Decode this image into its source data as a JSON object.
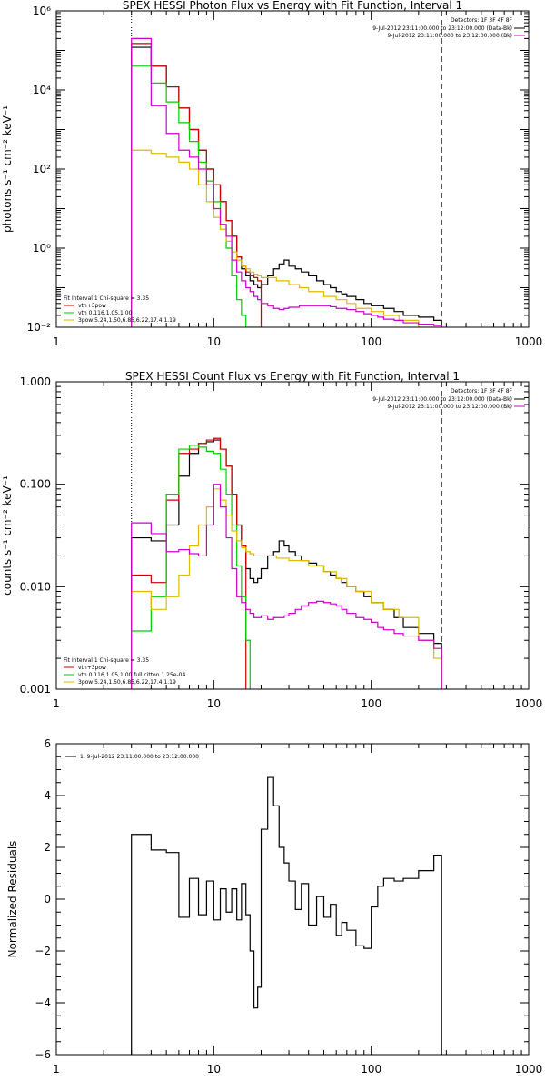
{
  "chart_data": [
    {
      "type": "line",
      "title": "SPEX HESSI Photon Flux vs Energy with Fit Function, Interval 1",
      "ylabel": "photons s⁻¹ cm⁻² keV⁻¹",
      "xscale": "log",
      "yscale": "log",
      "xlim": [
        1,
        1000
      ],
      "ylim": [
        0.01,
        1000000
      ],
      "x_ticks": [
        {
          "value": 1,
          "label": "1"
        },
        {
          "value": 10,
          "label": "10"
        },
        {
          "value": 100,
          "label": "100"
        },
        {
          "value": 1000,
          "label": "1000"
        }
      ],
      "y_ticks": [
        {
          "value": 0.01,
          "label": "10⁻²"
        },
        {
          "value": 1,
          "label": "10⁰"
        },
        {
          "value": 100,
          "label": "10²"
        },
        {
          "value": 10000,
          "label": "10⁴"
        },
        {
          "value": 1000000,
          "label": "10⁶"
        }
      ],
      "vlines": [
        {
          "x": 3,
          "style": "dotted",
          "color": "#000000"
        },
        {
          "x": 280,
          "style": "dashed",
          "color": "#000000"
        }
      ],
      "legend_topright": {
        "detectors": "Detectors: 1F 3F 4F 8F",
        "entries": [
          {
            "text": "9-Jul-2012 23:11:00.000 to 23:12:00.000 (Data-Bk)",
            "color": "#000000"
          },
          {
            "text": "9-Jul-2012 23:11:00.000 to 23:12:00.000 (Bk)",
            "color": "#cc00cc"
          }
        ]
      },
      "legend_bottomleft": {
        "fit_label": "Fit Interval 1    Chi-square = 3.35",
        "entries": [
          {
            "text": "vth+3pow",
            "color": "#cc0000"
          },
          {
            "text": "vth 0.116,1.05,1.00",
            "color": "#00cc00"
          },
          {
            "text": "3pow 5.24,1.50,6.85,6.22,17.4,1.19",
            "color": "#ddbb00"
          }
        ]
      },
      "series": [
        {
          "name": "Data-Bk",
          "color": "#000000",
          "edges": [
            3,
            4,
            5,
            6,
            7,
            8,
            9,
            10,
            11,
            12,
            13,
            14,
            15,
            16,
            17,
            18,
            19,
            20,
            22,
            24,
            26,
            28,
            30,
            33,
            36,
            40,
            45,
            50,
            55,
            60,
            65,
            70,
            80,
            90,
            100,
            120,
            140,
            160,
            200,
            250,
            280
          ],
          "values": [
            120000,
            40000,
            12000,
            3500,
            1000,
            300,
            100,
            40,
            15,
            5,
            2,
            0.6,
            0.3,
            0.2,
            0.15,
            0.12,
            0.1,
            0.12,
            0.2,
            0.3,
            0.4,
            0.5,
            0.35,
            0.3,
            0.25,
            0.2,
            0.15,
            0.12,
            0.1,
            0.08,
            0.07,
            0.06,
            0.05,
            0.04,
            0.035,
            0.03,
            0.025,
            0.02,
            0.018,
            0.015
          ]
        },
        {
          "name": "vth+3pow",
          "color": "#cc0000",
          "edges": [
            3,
            4,
            5,
            6,
            7,
            8,
            9,
            10,
            11,
            12,
            13,
            14,
            15,
            16,
            17,
            18,
            19,
            20
          ],
          "values": [
            150000,
            40000,
            12000,
            3500,
            1000,
            300,
            100,
            40,
            15,
            5,
            2,
            0.6,
            0.35,
            0.25,
            0.2,
            0.18,
            0.15
          ]
        },
        {
          "name": "vth 0.116,1.05,1.00",
          "color": "#00cc00",
          "edges": [
            3,
            4,
            5,
            6,
            7,
            8,
            9,
            10,
            11,
            12,
            13,
            14,
            15,
            16,
            17,
            18,
            19,
            20
          ],
          "values": [
            40000,
            15000,
            5000,
            1500,
            500,
            150,
            50,
            15,
            4,
            1,
            0.2,
            0.05,
            0.02,
            0.01,
            0.01,
            0.01,
            0.01
          ]
        },
        {
          "name": "3pow 5.24,1.50,6.85,6.22,17.4,1.19",
          "color": "#ddbb00",
          "edges": [
            3,
            4,
            5,
            6,
            7,
            8,
            9,
            10,
            11,
            12,
            13,
            14,
            15,
            16,
            17,
            18,
            19,
            20,
            25,
            30,
            35,
            40,
            50,
            60,
            70,
            80,
            100,
            120,
            150,
            200,
            280
          ],
          "values": [
            300,
            250,
            200,
            150,
            100,
            40,
            15,
            6,
            3,
            1.5,
            0.8,
            0.5,
            0.35,
            0.3,
            0.25,
            0.22,
            0.2,
            0.18,
            0.15,
            0.12,
            0.1,
            0.08,
            0.06,
            0.05,
            0.04,
            0.03,
            0.025,
            0.02,
            0.015,
            0.01
          ]
        },
        {
          "name": "Bk",
          "color": "#cc00cc",
          "edges": [
            3,
            4,
            5,
            6,
            7,
            8,
            9,
            10,
            11,
            12,
            13,
            14,
            15,
            16,
            17,
            18,
            19,
            20,
            22,
            24,
            26,
            28,
            30,
            35,
            40,
            45,
            50,
            55,
            60,
            70,
            80,
            90,
            100,
            110,
            120,
            140,
            160,
            200,
            250,
            280
          ],
          "values": [
            200000,
            4000,
            800,
            300,
            200,
            100,
            40,
            10,
            4,
            2,
            0.5,
            0.25,
            0.15,
            0.1,
            0.08,
            0.06,
            0.05,
            0.04,
            0.035,
            0.03,
            0.028,
            0.03,
            0.032,
            0.035,
            0.035,
            0.035,
            0.035,
            0.033,
            0.03,
            0.028,
            0.025,
            0.022,
            0.02,
            0.018,
            0.016,
            0.015,
            0.013,
            0.012,
            0.011
          ]
        }
      ]
    },
    {
      "type": "line",
      "title": "SPEX HESSI Count Flux vs Energy with Fit Function, Interval 1",
      "ylabel": "counts s⁻¹ cm⁻² keV⁻¹",
      "xscale": "log",
      "yscale": "log",
      "xlim": [
        1,
        1000
      ],
      "ylim": [
        0.001,
        1
      ],
      "x_ticks": [
        {
          "value": 1,
          "label": "1"
        },
        {
          "value": 10,
          "label": "10"
        },
        {
          "value": 100,
          "label": "100"
        },
        {
          "value": 1000,
          "label": "1000"
        }
      ],
      "y_ticks": [
        {
          "value": 0.001,
          "label": "0.001"
        },
        {
          "value": 0.01,
          "label": "0.010"
        },
        {
          "value": 0.1,
          "label": "0.100"
        },
        {
          "value": 1,
          "label": "1.000"
        }
      ],
      "vlines": [
        {
          "x": 3,
          "style": "dotted",
          "color": "#000000"
        },
        {
          "x": 280,
          "style": "dashed",
          "color": "#000000"
        }
      ],
      "legend_topright": {
        "detectors": "Detectors: 1F 3F 4F 8F",
        "entries": [
          {
            "text": "9-Jul-2012 23:11:00.000 to 23:12:00.000 (Data-Bk)",
            "color": "#000000"
          },
          {
            "text": "9-Jul-2012 23:11:00.000 to 23:12:00.000 (Bk)",
            "color": "#cc00cc"
          }
        ]
      },
      "legend_bottomleft": {
        "fit_label": "Fit Interval 1    Chi-square = 3.35",
        "entries": [
          {
            "text": "vth+3pow",
            "color": "#cc0000"
          },
          {
            "text": "vth 0.116,1.05,1.00  full citton 1.25e-04",
            "color": "#00cc00"
          },
          {
            "text": "3pow 5.24,1.50,6.85,6.22,17.4,1.19",
            "color": "#ddbb00"
          }
        ]
      },
      "series": [
        {
          "name": "Data-Bk",
          "color": "#000000",
          "edges": [
            3,
            4,
            5,
            6,
            7,
            8,
            9,
            10,
            11,
            12,
            13,
            14,
            15,
            16,
            17,
            18,
            19,
            20,
            22,
            24,
            26,
            28,
            30,
            33,
            36,
            40,
            45,
            50,
            55,
            60,
            65,
            70,
            80,
            90,
            100,
            120,
            140,
            160,
            200,
            250,
            280
          ],
          "values": [
            0.03,
            0.028,
            0.04,
            0.12,
            0.2,
            0.25,
            0.26,
            0.27,
            0.22,
            0.15,
            0.08,
            0.04,
            0.025,
            0.015,
            0.012,
            0.011,
            0.012,
            0.015,
            0.02,
            0.022,
            0.028,
            0.025,
            0.022,
            0.02,
            0.018,
            0.017,
            0.016,
            0.014,
            0.013,
            0.012,
            0.011,
            0.01,
            0.009,
            0.008,
            0.007,
            0.006,
            0.005,
            0.004,
            0.0035,
            0.0028
          ]
        },
        {
          "name": "vth+3pow",
          "color": "#cc0000",
          "edges": [
            3,
            4,
            5,
            6,
            7,
            8,
            9,
            10,
            11,
            12,
            13,
            14,
            15,
            16
          ],
          "values": [
            0.013,
            0.011,
            0.07,
            0.2,
            0.22,
            0.25,
            0.27,
            0.28,
            0.22,
            0.15,
            0.08,
            0.04,
            0.025
          ]
        },
        {
          "name": "vth 0.116,1.05,1.00",
          "color": "#00cc00",
          "edges": [
            3,
            4,
            5,
            6,
            7,
            8,
            9,
            10,
            11,
            12,
            13,
            14,
            15,
            16,
            17
          ],
          "values": [
            0.0037,
            0.008,
            0.08,
            0.22,
            0.24,
            0.23,
            0.21,
            0.2,
            0.14,
            0.08,
            0.04,
            0.016,
            0.008,
            0.003
          ]
        },
        {
          "name": "3pow 5.24,1.50,6.85,6.22,17.4,1.19",
          "color": "#ddbb00",
          "edges": [
            3,
            4,
            5,
            6,
            7,
            8,
            9,
            10,
            11,
            12,
            13,
            14,
            15,
            16,
            17,
            18,
            19,
            20,
            25,
            30,
            40,
            50,
            60,
            70,
            80,
            100,
            120,
            150,
            200,
            250,
            280
          ],
          "values": [
            0.009,
            0.006,
            0.008,
            0.013,
            0.025,
            0.04,
            0.06,
            0.09,
            0.07,
            0.05,
            0.035,
            0.028,
            0.024,
            0.022,
            0.021,
            0.02,
            0.02,
            0.02,
            0.019,
            0.018,
            0.016,
            0.014,
            0.012,
            0.01,
            0.009,
            0.007,
            0.006,
            0.005,
            0.003,
            0.002
          ]
        },
        {
          "name": "Bk",
          "color": "#cc00cc",
          "edges": [
            3,
            4,
            5,
            6,
            7,
            8,
            9,
            10,
            11,
            12,
            13,
            14,
            15,
            16,
            17,
            18,
            19,
            20,
            22,
            24,
            26,
            28,
            30,
            33,
            36,
            40,
            45,
            50,
            55,
            60,
            65,
            70,
            80,
            90,
            100,
            110,
            120,
            140,
            160,
            200,
            250,
            280
          ],
          "values": [
            0.042,
            0.033,
            0.022,
            0.023,
            0.021,
            0.02,
            0.04,
            0.1,
            0.06,
            0.03,
            0.015,
            0.008,
            0.007,
            0.006,
            0.0055,
            0.005,
            0.005,
            0.0052,
            0.0048,
            0.005,
            0.005,
            0.0052,
            0.0055,
            0.006,
            0.0065,
            0.007,
            0.0072,
            0.007,
            0.0068,
            0.0065,
            0.006,
            0.0055,
            0.005,
            0.0048,
            0.0045,
            0.004,
            0.0038,
            0.0035,
            0.0033,
            0.003,
            0.0025
          ]
        }
      ]
    },
    {
      "type": "line",
      "title": "",
      "ylabel": "Normalized Residuals",
      "xscale": "log",
      "yscale": "linear",
      "xlim": [
        1,
        1000
      ],
      "ylim": [
        -6,
        6
      ],
      "x_ticks": [
        {
          "value": 1,
          "label": "1"
        },
        {
          "value": 10,
          "label": "10"
        },
        {
          "value": 100,
          "label": "100"
        },
        {
          "value": 1000,
          "label": "1000"
        }
      ],
      "y_ticks": [
        {
          "value": -6,
          "label": "−6"
        },
        {
          "value": -4,
          "label": "−4"
        },
        {
          "value": -2,
          "label": "−2"
        },
        {
          "value": 0,
          "label": "0"
        },
        {
          "value": 2,
          "label": "2"
        },
        {
          "value": 4,
          "label": "4"
        },
        {
          "value": 6,
          "label": "6"
        }
      ],
      "legend_topleft": {
        "entries": [
          {
            "text": "1.  9-Jul-2012 23:11:00.000 to 23:12:00.000",
            "color": "#000000"
          }
        ]
      },
      "series": [
        {
          "name": "1.  9-Jul-2012 23:11:00.000 to 23:12:00.000",
          "color": "#000000",
          "edges": [
            3,
            4,
            5,
            6,
            7,
            8,
            9,
            10,
            11,
            12,
            13,
            14,
            15,
            16,
            17,
            18,
            19,
            20,
            22,
            24,
            26,
            28,
            30,
            33,
            36,
            40,
            45,
            50,
            55,
            60,
            65,
            70,
            80,
            90,
            100,
            110,
            120,
            140,
            160,
            200,
            250,
            280
          ],
          "values": [
            2.5,
            1.9,
            1.8,
            -0.7,
            0.8,
            -0.6,
            0.7,
            -0.8,
            0.4,
            -0.5,
            0.4,
            -0.8,
            0.6,
            -0.6,
            -2.0,
            -4.2,
            -3.4,
            2.7,
            4.7,
            3.6,
            2.0,
            1.4,
            0.7,
            -0.4,
            0.6,
            -1.0,
            0.1,
            -0.7,
            -0.2,
            -1.4,
            -0.9,
            -1.2,
            -1.8,
            -1.9,
            -0.3,
            0.5,
            0.8,
            0.7,
            0.8,
            1.1,
            1.7
          ]
        }
      ]
    }
  ]
}
